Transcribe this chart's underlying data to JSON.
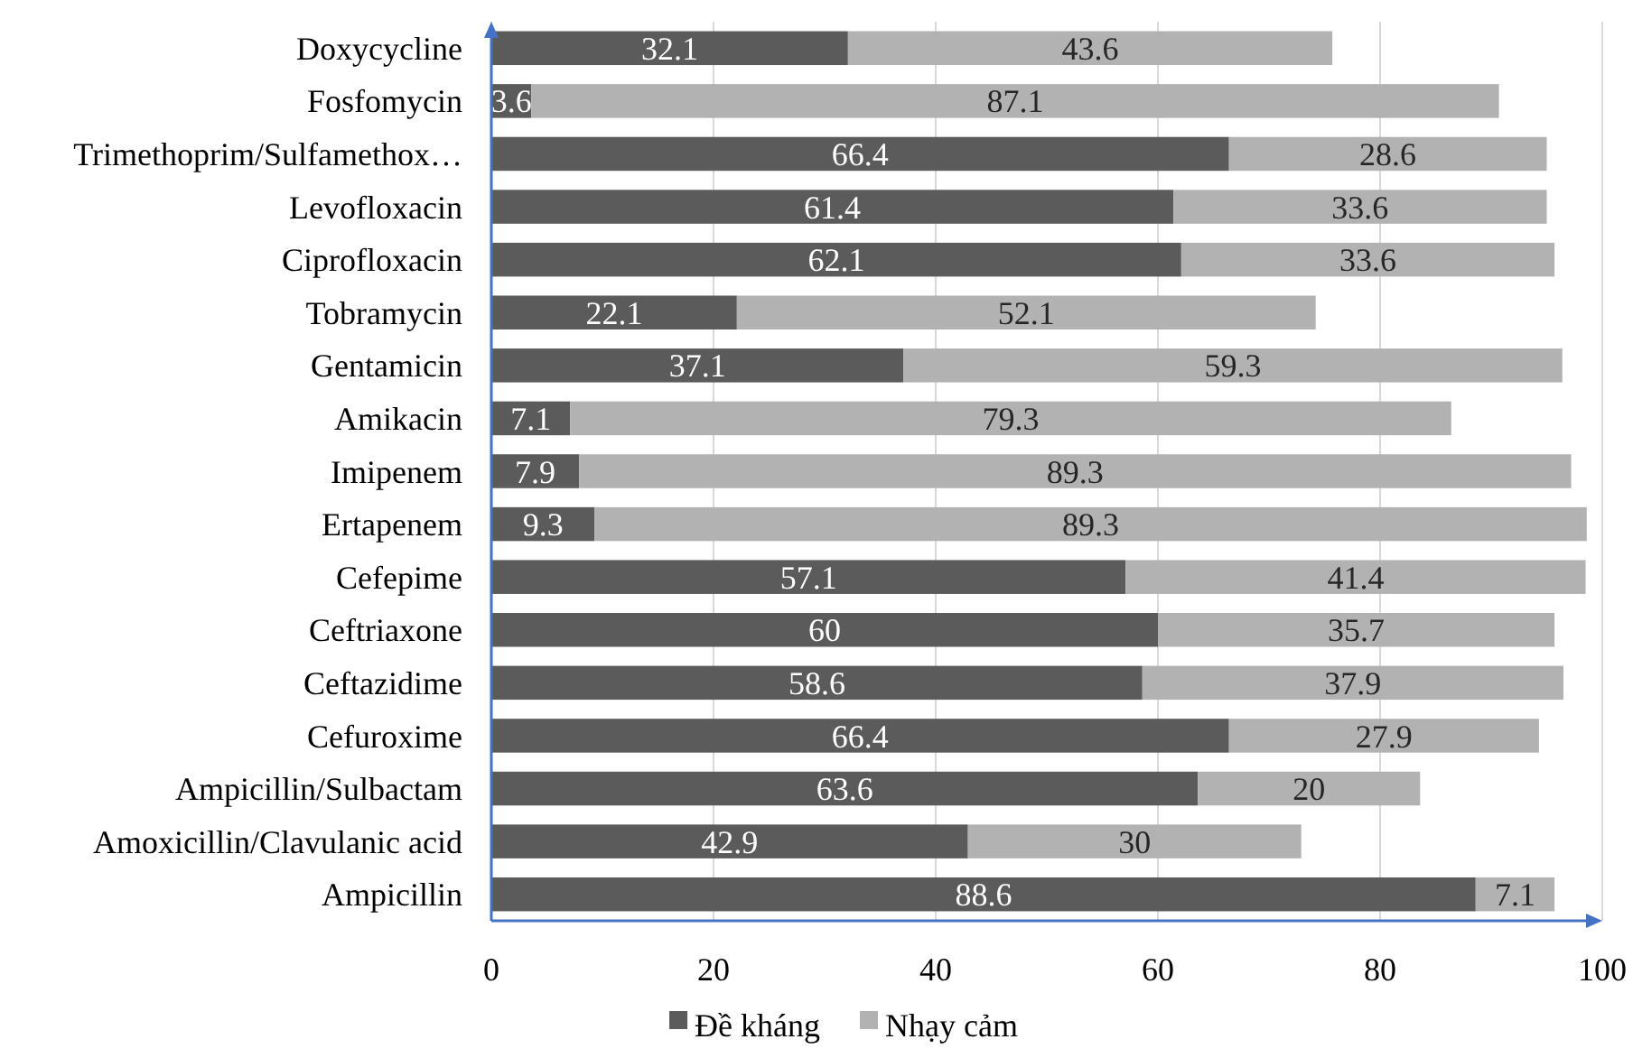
{
  "chart_data": {
    "type": "bar",
    "orientation": "horizontal",
    "stacked": true,
    "categories": [
      "Doxycycline",
      "Fosfomycin",
      "Trimethoprim/Sulfamethox…",
      "Levofloxacin",
      "Ciprofloxacin",
      "Tobramycin",
      "Gentamicin",
      "Amikacin",
      "Imipenem",
      "Ertapenem",
      "Cefepime",
      "Ceftriaxone",
      "Ceftazidime",
      "Cefuroxime",
      "Ampicillin/Sulbactam",
      "Amoxicillin/Clavulanic acid",
      "Ampicillin"
    ],
    "series": [
      {
        "name": "Đề kháng",
        "color": "#5b5b5b",
        "values": [
          32.1,
          3.6,
          66.4,
          61.4,
          62.1,
          22.1,
          37.1,
          7.1,
          7.9,
          9.3,
          57.1,
          60,
          58.6,
          66.4,
          63.6,
          42.9,
          88.6
        ]
      },
      {
        "name": "Nhạy cảm",
        "color": "#b2b2b2",
        "values": [
          43.6,
          87.1,
          28.6,
          33.6,
          33.6,
          52.1,
          59.3,
          79.3,
          89.3,
          89.3,
          41.4,
          35.7,
          37.9,
          27.9,
          20,
          30,
          7.1
        ]
      }
    ],
    "xlim": [
      0,
      100
    ],
    "xticks": [
      0,
      20,
      40,
      60,
      80,
      100
    ],
    "grid": "x",
    "legend": "bottom",
    "data_labels": true
  }
}
